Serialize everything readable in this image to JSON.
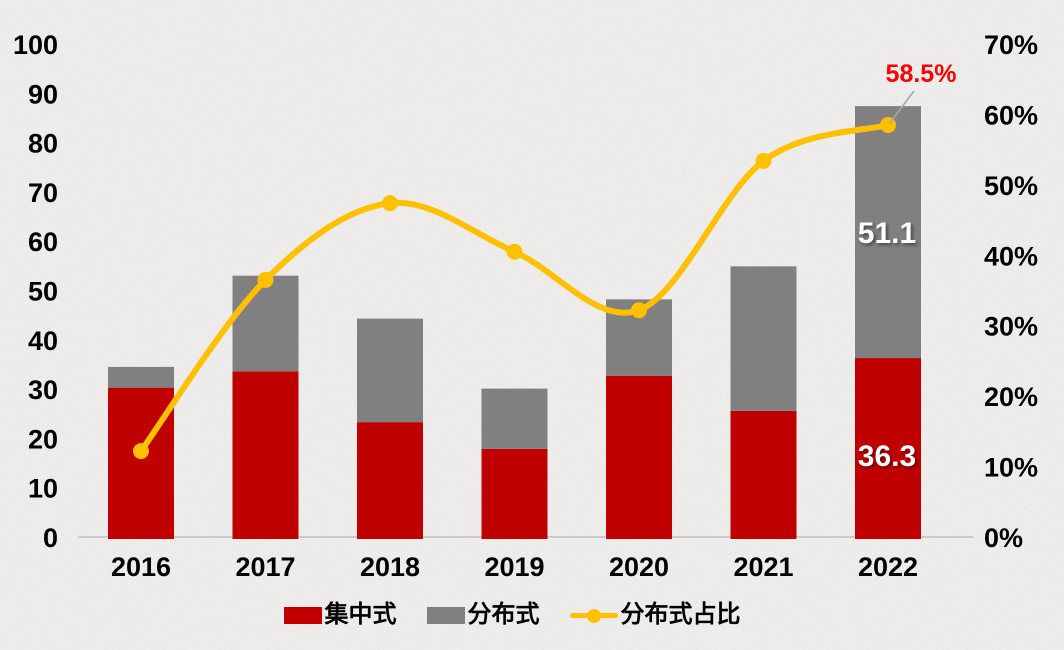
{
  "chart_data": {
    "type": "combo-stacked-bar-line",
    "title": "",
    "categories": [
      "2016",
      "2017",
      "2018",
      "2019",
      "2020",
      "2021",
      "2022"
    ],
    "series": [
      {
        "name": "集中式",
        "type": "bar",
        "stack": true,
        "axis": "left",
        "color": "#c00000",
        "values": [
          30.3,
          33.6,
          23.3,
          17.9,
          32.7,
          25.6,
          36.3
        ]
      },
      {
        "name": "分布式",
        "type": "bar",
        "stack": true,
        "axis": "left",
        "color": "#808080",
        "values": [
          4.2,
          19.4,
          21.0,
          12.2,
          15.5,
          29.3,
          51.1
        ]
      },
      {
        "name": "分布式占比",
        "type": "line",
        "smooth": true,
        "axis": "right",
        "color": "#ffc000",
        "values": [
          12.2,
          36.5,
          47.4,
          40.5,
          32.2,
          53.4,
          58.5
        ]
      }
    ],
    "left_axis": {
      "min": 0,
      "max": 100,
      "step": 10,
      "ticks": [
        "0",
        "10",
        "20",
        "30",
        "40",
        "50",
        "60",
        "70",
        "80",
        "90",
        "100"
      ]
    },
    "right_axis": {
      "min": 0,
      "max": 70,
      "step": 10,
      "ticks": [
        "0%",
        "10%",
        "20%",
        "30%",
        "40%",
        "50%",
        "60%",
        "70%"
      ]
    },
    "bar_labels": [
      {
        "category": "2022",
        "series": "分布式",
        "text": "51.1"
      },
      {
        "category": "2022",
        "series": "集中式",
        "text": "36.3"
      }
    ],
    "callout": {
      "text": "58.5%",
      "category": "2022",
      "color": "#ff0000"
    },
    "grid": false,
    "legend_position": "bottom"
  },
  "legend": [
    {
      "label": "集中式",
      "swatch": "bar",
      "color": "#c00000"
    },
    {
      "label": "分布式",
      "swatch": "bar",
      "color": "#808080"
    },
    {
      "label": "分布式占比",
      "swatch": "line-dot",
      "color": "#ffc000"
    }
  ],
  "colors": {
    "background": "#f0efed",
    "axis_line": "#cbcac8",
    "axis_text": "#000000",
    "bar_label_text": "#ffffff",
    "callout_text": "#ff0000",
    "leader_line": "#a8a8a8"
  }
}
